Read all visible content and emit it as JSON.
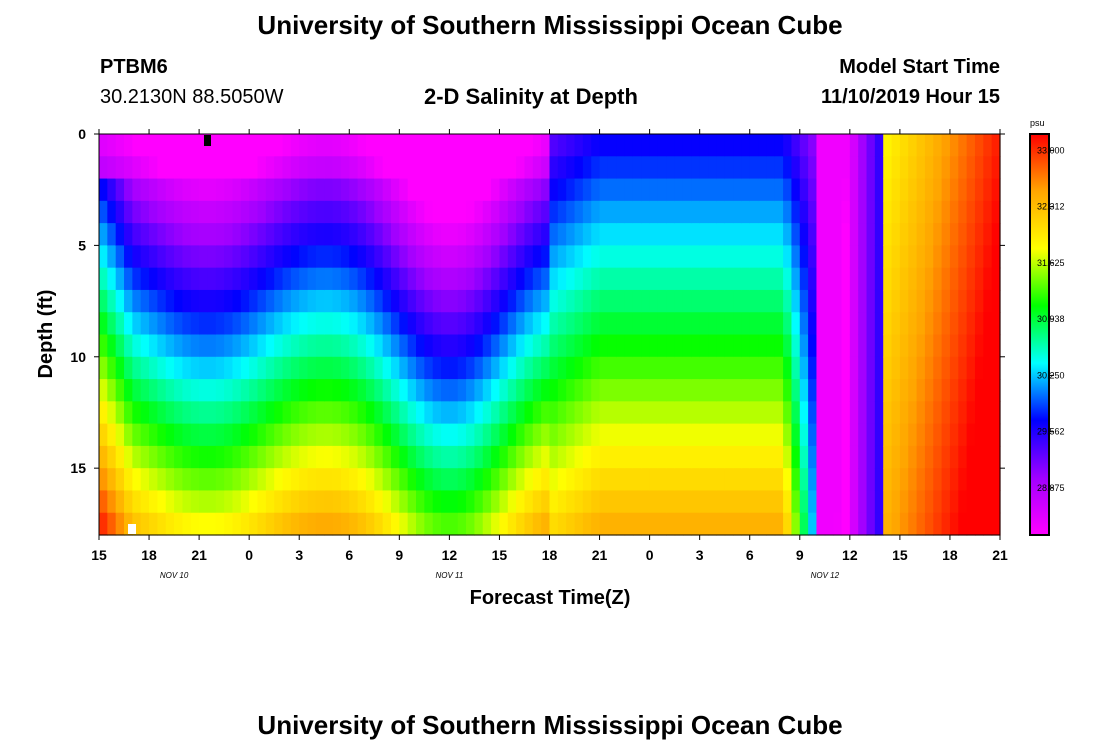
{
  "page": {
    "title_top": "University of Southern Mississippi Ocean Cube",
    "title_bottom": "University of Southern Mississippi Ocean Cube",
    "station_id": "PTBM6",
    "station_coords": "30.2130N 88.5050W",
    "plot_title": "2-D Salinity at Depth",
    "model_start_label": "Model Start Time",
    "model_start_value": "11/10/2019 Hour 15"
  },
  "colors": {
    "background": "#ffffff",
    "axis": "#000000",
    "colorbar_stops": [
      "#ff00ff",
      "#a000ff",
      "#0000ff",
      "#00ffff",
      "#00ff00",
      "#ffff00",
      "#ffa500",
      "#ff0000"
    ]
  },
  "chart_data": {
    "type": "heatmap",
    "title": "2-D Salinity at Depth",
    "xlabel": "Forecast Time(Z)",
    "ylabel": "Depth (ft)",
    "x_tick_labels": [
      "15",
      "18",
      "21",
      "0",
      "3",
      "6",
      "9",
      "12",
      "15",
      "18",
      "21",
      "0",
      "3",
      "6",
      "9",
      "12",
      "15",
      "18",
      "21"
    ],
    "x_date_labels": [
      {
        "label": "NOV 10",
        "at_tick": 1.5
      },
      {
        "label": "NOV 11",
        "at_tick": 7
      },
      {
        "label": "NOV 12",
        "at_tick": 14.5
      }
    ],
    "xlim_hours": [
      0,
      54
    ],
    "y_tick_labels": [
      "0",
      "5",
      "10",
      "15"
    ],
    "y_tick_values": [
      0,
      5,
      10,
      15
    ],
    "ylim": [
      0,
      18
    ],
    "colorbar": {
      "unit": "psu",
      "tick_labels": [
        "33.000",
        "32.312",
        "31.625",
        "30.938",
        "30.250",
        "29.562",
        "28.875"
      ],
      "range": [
        28.3,
        33.2
      ]
    },
    "z_unit": "psu",
    "description_values": {
      "surface_fresh_minimum_psu": 28.6,
      "bottom_max_psu": 33.0
    }
  }
}
